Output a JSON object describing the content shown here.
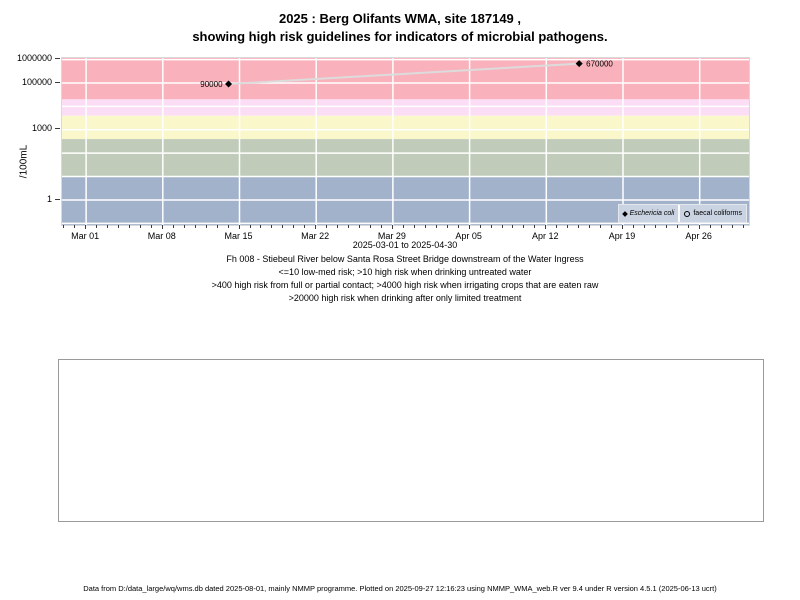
{
  "footer": "Data from D:/data_large/wq/wms.db dated 2025-08-01, mainly NMMP programme. Plotted on 2025-09-27 12:16:23 using NMMP_WMA_web.R ver 9.4 under R version 4.5.1 (2025-06-13 ucrt)",
  "chart_data": {
    "type": "line",
    "title_lines": [
      "2025 : Berg Olifants WMA, site 187149 ,",
      "showing high risk guidelines for indicators of microbial pathogens."
    ],
    "subtitle": "2025-03-01 to 2025-04-30",
    "ylabel": "/100mL",
    "caption_lines": [
      "Fh 008 - Stiebeul River below Santa Rosa Street Bridge downstream of the Water Ingress",
      "<=10 low-med risk; >10 high risk when drinking untreated water",
      ">400 high risk from full or partial contact; >4000 high risk when irrigating crops that are eaten raw",
      ">20000 high risk when drinking after only limited treatment"
    ],
    "x_axis": {
      "start_date": "2025-03-01",
      "end_date": "2025-04-30",
      "range_days": [
        -2.2,
        60.5
      ],
      "major_ticks": [
        {
          "day": 0,
          "label": "Mar 01"
        },
        {
          "day": 7,
          "label": "Mar 08"
        },
        {
          "day": 14,
          "label": "Mar 15"
        },
        {
          "day": 21,
          "label": "Mar 22"
        },
        {
          "day": 28,
          "label": "Mar 29"
        },
        {
          "day": 35,
          "label": "Apr 05"
        },
        {
          "day": 42,
          "label": "Apr 12"
        },
        {
          "day": 49,
          "label": "Apr 19"
        },
        {
          "day": 56,
          "label": "Apr 26"
        }
      ],
      "minor_tick_every_days": 1,
      "grid": "white vertical lines at weekly major ticks"
    },
    "y_axis": {
      "scale": "log",
      "ylim": [
        0.085,
        1170000
      ],
      "ticks": [
        {
          "value": 1,
          "label": "1"
        },
        {
          "value": 1000,
          "label": "1000"
        },
        {
          "value": 100000,
          "label": "100000"
        },
        {
          "value": 1000000,
          "label": "1000000"
        }
      ],
      "gridline_values": [
        0.1,
        1,
        10,
        100,
        1000,
        10000,
        100000,
        1000000
      ],
      "grid_color": "#ffffff"
    },
    "bands": [
      {
        "name": "high-risk-drinking-limited-treatment",
        "from": 20000,
        "to": 1170000,
        "color": "#f9b1bc"
      },
      {
        "name": "high-risk-irrigating-raw-crops",
        "from": 4000,
        "to": 20000,
        "color": "#fbdef6"
      },
      {
        "name": "high-risk-contact",
        "from": 400,
        "to": 4000,
        "color": "#faf7cb"
      },
      {
        "name": "high-risk-drinking-untreated",
        "from": 10,
        "to": 400,
        "color": "#c1cbba"
      },
      {
        "name": "low-med-risk",
        "from": 0.085,
        "to": 10,
        "color": "#a2b2cb"
      }
    ],
    "series": [
      {
        "name": "Eschericia coli",
        "marker": "diamond",
        "marker_color": "#000000",
        "line_color": "#dcdcdc",
        "points": [
          {
            "day": 13,
            "date": "Mar 14",
            "value": 90000,
            "label": "90000",
            "label_side": "left"
          },
          {
            "day": 45,
            "date": "Apr 15",
            "value": 670000,
            "label": "670000",
            "label_side": "right"
          }
        ]
      },
      {
        "name": "faecal coliforms",
        "marker": "open-circle",
        "marker_color": "#000000",
        "line_color": "#dcdcdc",
        "points": []
      }
    ],
    "legend": {
      "position": "bottom-right",
      "background": "#c9d3e1",
      "entries": [
        {
          "marker": "diamond",
          "label": "Eschericia coli",
          "italic": true
        },
        {
          "marker": "open-circle",
          "label": "faecal coliforms",
          "italic": false
        }
      ]
    }
  }
}
